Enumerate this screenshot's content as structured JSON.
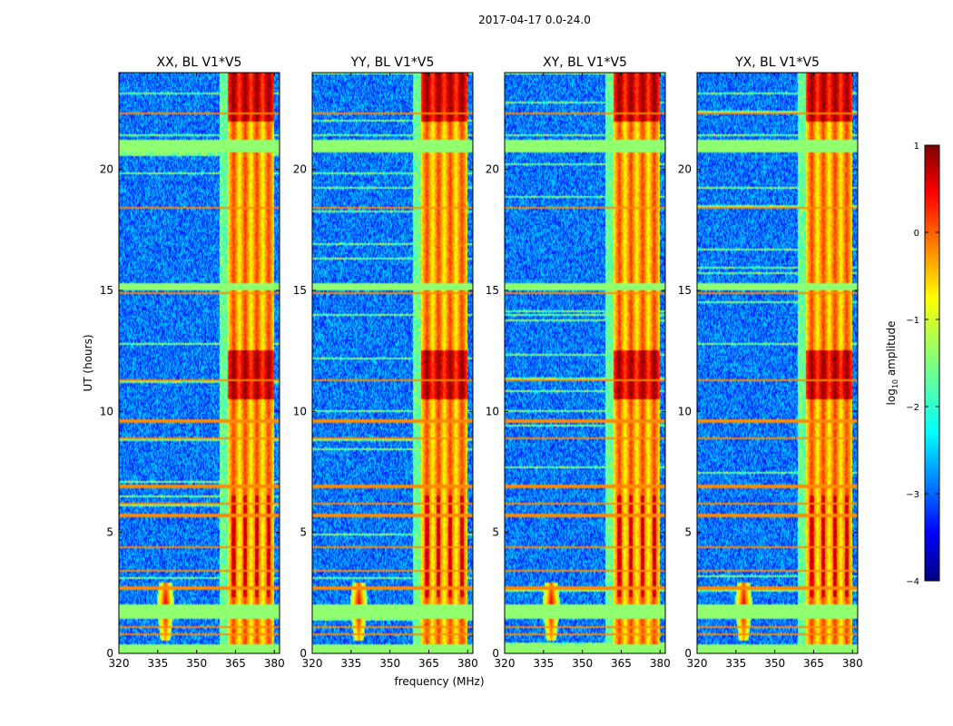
{
  "figure": {
    "suptitle": "2017-04-17 0.0-24.0"
  },
  "chart_data": {
    "type": "heatmap",
    "title": "2017-04-17 0.0-24.0",
    "xlabel": "frequency (MHz)",
    "ylabel": "UT (hours)",
    "xlim": [
      320,
      382
    ],
    "ylim": [
      0,
      24
    ],
    "xticks": [
      320,
      335,
      350,
      365,
      380
    ],
    "yticks": [
      0,
      5,
      10,
      15,
      20
    ],
    "panels": [
      {
        "title": "XX, BL V1*V5"
      },
      {
        "title": "YY, BL V1*V5"
      },
      {
        "title": "XY, BL V1*V5"
      },
      {
        "title": "YX, BL V1*V5"
      }
    ],
    "colorbar": {
      "label_main": "log",
      "label_sub": "10",
      "label_rest": " amplitude",
      "range": [
        -4,
        1
      ],
      "ticks": [
        1,
        0,
        -1,
        -2,
        -3,
        -4
      ],
      "tick_labels": [
        "1",
        "0",
        "−1",
        "−2",
        "−3",
        "−4"
      ],
      "colormap": "jet"
    },
    "flagged_color": "#90ff70",
    "flagged_bands_ut": [
      [
        20.7,
        21.2
      ],
      [
        15.0,
        15.3
      ],
      [
        1.4,
        2.0
      ],
      [
        0.0,
        0.35
      ]
    ],
    "rfi_lines_ut": [
      22.3,
      21.1,
      18.4,
      14.9,
      11.3,
      9.6,
      8.9,
      6.9,
      6.2,
      5.7,
      4.4,
      3.4,
      2.7,
      1.6,
      1.1,
      0.8
    ],
    "strong_emission_band_mhz": [
      362,
      380
    ],
    "bright_source_mhz": 338
  }
}
